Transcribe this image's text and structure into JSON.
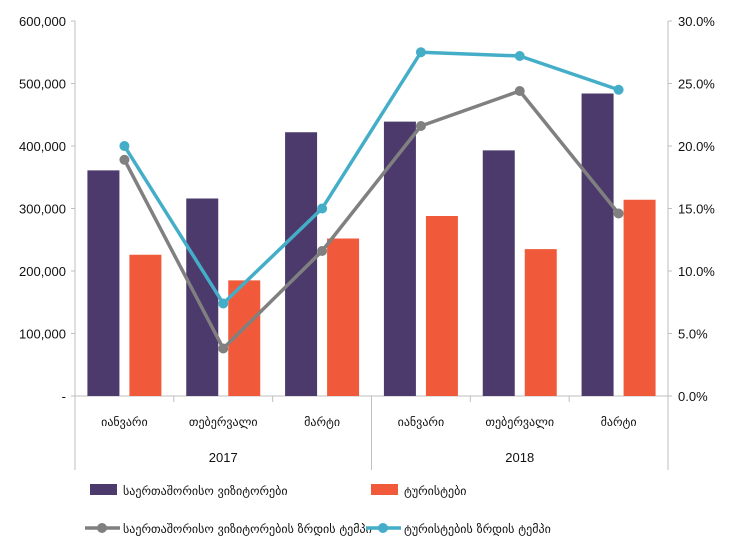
{
  "chart_data": {
    "type": "bar",
    "categories": [
      "იანვარი",
      "თებერვალი",
      "მარტი",
      "იანვარი",
      "თებერვალი",
      "მარტი"
    ],
    "groups": [
      {
        "label": "2017",
        "categories": [
          0,
          1,
          2
        ]
      },
      {
        "label": "2018",
        "categories": [
          3,
          4,
          5
        ]
      }
    ],
    "series": [
      {
        "name": "საერთაშორისო ვიზიტორები",
        "type": "bar",
        "axis": "left",
        "color": "#4b3a6b",
        "values": [
          361000,
          316000,
          422000,
          439000,
          393000,
          484000
        ]
      },
      {
        "name": "ტურისტები",
        "type": "bar",
        "axis": "left",
        "color": "#f05a3a",
        "values": [
          226000,
          185000,
          252000,
          288000,
          235000,
          314000
        ]
      },
      {
        "name": "საერთაშორისო ვიზიტორების ზრდის ტემპი",
        "type": "line",
        "axis": "right",
        "color": "#808080",
        "values": [
          18.9,
          3.8,
          11.6,
          21.6,
          24.4,
          14.6
        ]
      },
      {
        "name": "ტურისტების ზრდის ტემპი",
        "type": "line",
        "axis": "right",
        "color": "#44aec8",
        "values": [
          20.0,
          7.4,
          15.0,
          27.5,
          27.2,
          24.5
        ]
      }
    ],
    "left_axis": {
      "min": 0,
      "max": 600000,
      "step": 100000,
      "tick_labels": [
        "-",
        "100,000",
        "200,000",
        "300,000",
        "400,000",
        "500,000",
        "600,000"
      ]
    },
    "right_axis": {
      "min": 0,
      "max": 30,
      "step": 5,
      "tick_labels": [
        "0.0%",
        "5.0%",
        "10.0%",
        "15.0%",
        "20.0%",
        "25.0%",
        "30.0%"
      ]
    },
    "grid": false,
    "legend_position": "bottom"
  }
}
